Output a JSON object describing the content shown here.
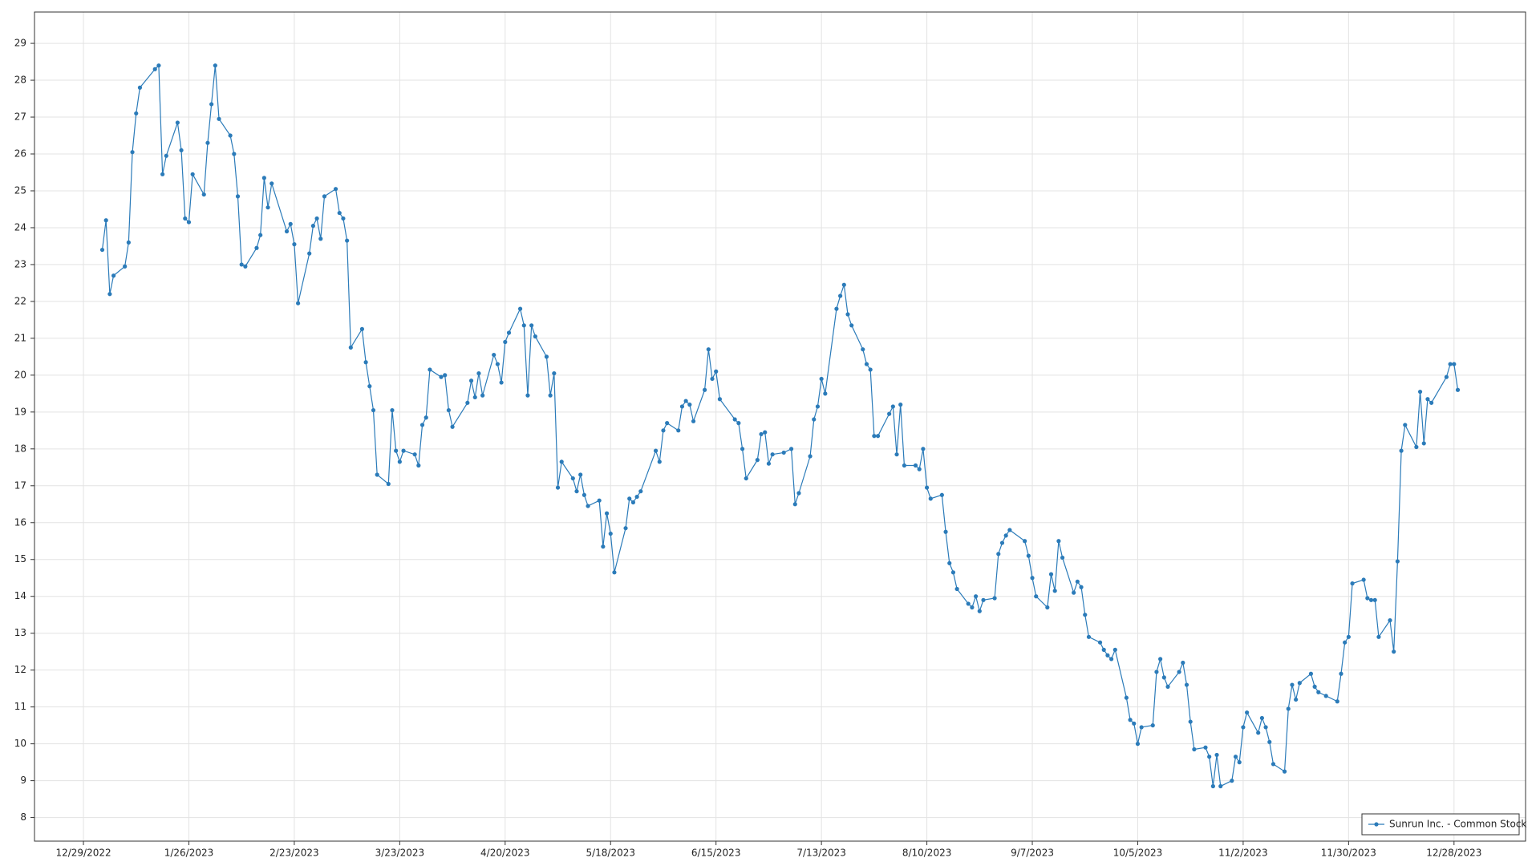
{
  "chart_data": {
    "type": "line",
    "xlim": [
      "12/16/2022",
      "1/16/2024"
    ],
    "xticks": [
      "12/29/2022",
      "1/26/2023",
      "2/23/2023",
      "3/23/2023",
      "4/20/2023",
      "5/18/2023",
      "6/15/2023",
      "7/13/2023",
      "8/10/2023",
      "9/7/2023",
      "10/5/2023",
      "11/2/2023",
      "11/30/2023",
      "12/28/2023"
    ],
    "ylim": [
      7.36,
      29.85
    ],
    "yticks": [
      8,
      9,
      10,
      11,
      12,
      13,
      14,
      15,
      16,
      17,
      18,
      19,
      20,
      21,
      22,
      23,
      24,
      25,
      26,
      27,
      28,
      29
    ],
    "grid": true,
    "legend": "bottom-right",
    "x": [
      "1/3/2023",
      "1/4/2023",
      "1/5/2023",
      "1/6/2023",
      "1/9/2023",
      "1/10/2023",
      "1/11/2023",
      "1/12/2023",
      "1/13/2023",
      "1/17/2023",
      "1/18/2023",
      "1/19/2023",
      "1/20/2023",
      "1/23/2023",
      "1/24/2023",
      "1/25/2023",
      "1/26/2023",
      "1/27/2023",
      "1/30/2023",
      "1/31/2023",
      "2/1/2023",
      "2/2/2023",
      "2/3/2023",
      "2/6/2023",
      "2/7/2023",
      "2/8/2023",
      "2/9/2023",
      "2/10/2023",
      "2/13/2023",
      "2/14/2023",
      "2/15/2023",
      "2/16/2023",
      "2/17/2023",
      "2/21/2023",
      "2/22/2023",
      "2/23/2023",
      "2/24/2023",
      "2/27/2023",
      "2/28/2023",
      "3/1/2023",
      "3/2/2023",
      "3/3/2023",
      "3/6/2023",
      "3/7/2023",
      "3/8/2023",
      "3/9/2023",
      "3/10/2023",
      "3/13/2023",
      "3/14/2023",
      "3/15/2023",
      "3/16/2023",
      "3/17/2023",
      "3/20/2023",
      "3/21/2023",
      "3/22/2023",
      "3/23/2023",
      "3/24/2023",
      "3/27/2023",
      "3/28/2023",
      "3/29/2023",
      "3/30/2023",
      "3/31/2023",
      "4/3/2023",
      "4/4/2023",
      "4/5/2023",
      "4/6/2023",
      "4/10/2023",
      "4/11/2023",
      "4/12/2023",
      "4/13/2023",
      "4/14/2023",
      "4/17/2023",
      "4/18/2023",
      "4/19/2023",
      "4/20/2023",
      "4/21/2023",
      "4/24/2023",
      "4/25/2023",
      "4/26/2023",
      "4/27/2023",
      "4/28/2023",
      "5/1/2023",
      "5/2/2023",
      "5/3/2023",
      "5/4/2023",
      "5/5/2023",
      "5/8/2023",
      "5/9/2023",
      "5/10/2023",
      "5/11/2023",
      "5/12/2023",
      "5/15/2023",
      "5/16/2023",
      "5/17/2023",
      "5/18/2023",
      "5/19/2023",
      "5/22/2023",
      "5/23/2023",
      "5/24/2023",
      "5/25/2023",
      "5/26/2023",
      "5/30/2023",
      "5/31/2023",
      "6/1/2023",
      "6/2/2023",
      "6/5/2023",
      "6/6/2023",
      "6/7/2023",
      "6/8/2023",
      "6/9/2023",
      "6/12/2023",
      "6/13/2023",
      "6/14/2023",
      "6/15/2023",
      "6/16/2023",
      "6/20/2023",
      "6/21/2023",
      "6/22/2023",
      "6/23/2023",
      "6/26/2023",
      "6/27/2023",
      "6/28/2023",
      "6/29/2023",
      "6/30/2023",
      "7/3/2023",
      "7/5/2023",
      "7/6/2023",
      "7/7/2023",
      "7/10/2023",
      "7/11/2023",
      "7/12/2023",
      "7/13/2023",
      "7/14/2023",
      "7/17/2023",
      "7/18/2023",
      "7/19/2023",
      "7/20/2023",
      "7/21/2023",
      "7/24/2023",
      "7/25/2023",
      "7/26/2023",
      "7/27/2023",
      "7/28/2023",
      "7/31/2023",
      "8/1/2023",
      "8/2/2023",
      "8/3/2023",
      "8/4/2023",
      "8/7/2023",
      "8/8/2023",
      "8/9/2023",
      "8/10/2023",
      "8/11/2023",
      "8/14/2023",
      "8/15/2023",
      "8/16/2023",
      "8/17/2023",
      "8/18/2023",
      "8/21/2023",
      "8/22/2023",
      "8/23/2023",
      "8/24/2023",
      "8/25/2023",
      "8/28/2023",
      "8/29/2023",
      "8/30/2023",
      "8/31/2023",
      "9/1/2023",
      "9/5/2023",
      "9/6/2023",
      "9/7/2023",
      "9/8/2023",
      "9/11/2023",
      "9/12/2023",
      "9/13/2023",
      "9/14/2023",
      "9/15/2023",
      "9/18/2023",
      "9/19/2023",
      "9/20/2023",
      "9/21/2023",
      "9/22/2023",
      "9/25/2023",
      "9/26/2023",
      "9/27/2023",
      "9/28/2023",
      "9/29/2023",
      "10/2/2023",
      "10/3/2023",
      "10/4/2023",
      "10/5/2023",
      "10/6/2023",
      "10/9/2023",
      "10/10/2023",
      "10/11/2023",
      "10/12/2023",
      "10/13/2023",
      "10/16/2023",
      "10/17/2023",
      "10/18/2023",
      "10/19/2023",
      "10/20/2023",
      "10/23/2023",
      "10/24/2023",
      "10/25/2023",
      "10/26/2023",
      "10/27/2023",
      "10/30/2023",
      "10/31/2023",
      "11/1/2023",
      "11/2/2023",
      "11/3/2023",
      "11/6/2023",
      "11/7/2023",
      "11/8/2023",
      "11/9/2023",
      "11/10/2023",
      "11/13/2023",
      "11/14/2023",
      "11/15/2023",
      "11/16/2023",
      "11/17/2023",
      "11/20/2023",
      "11/21/2023",
      "11/22/2023",
      "11/24/2023",
      "11/27/2023",
      "11/28/2023",
      "11/29/2023",
      "11/30/2023",
      "12/1/2023",
      "12/4/2023",
      "12/5/2023",
      "12/6/2023",
      "12/7/2023",
      "12/8/2023",
      "12/11/2023",
      "12/12/2023",
      "12/13/2023",
      "12/14/2023",
      "12/15/2023",
      "12/18/2023",
      "12/19/2023",
      "12/20/2023",
      "12/21/2023",
      "12/22/2023",
      "12/26/2023",
      "12/27/2023",
      "12/28/2023",
      "12/29/2023"
    ],
    "series": [
      {
        "name": "Sunrun Inc. - Common Stock",
        "color": "#2b7bb9",
        "values": [
          23.4,
          24.2,
          22.2,
          22.7,
          22.95,
          23.6,
          26.05,
          27.1,
          27.8,
          28.3,
          28.4,
          25.45,
          25.95,
          26.85,
          26.1,
          24.25,
          24.15,
          25.45,
          24.9,
          26.3,
          27.35,
          28.4,
          26.95,
          26.5,
          26.0,
          24.85,
          23.0,
          22.95,
          23.45,
          23.8,
          25.35,
          24.55,
          25.2,
          23.9,
          24.1,
          23.55,
          21.95,
          23.3,
          24.05,
          24.25,
          23.7,
          24.85,
          25.05,
          24.4,
          24.25,
          23.65,
          20.75,
          21.25,
          20.35,
          19.7,
          19.05,
          17.3,
          17.05,
          19.05,
          17.95,
          17.65,
          17.95,
          17.85,
          17.55,
          18.65,
          18.85,
          20.15,
          19.95,
          20.0,
          19.05,
          18.6,
          19.25,
          19.85,
          19.4,
          20.05,
          19.45,
          20.55,
          20.3,
          19.8,
          20.9,
          21.15,
          21.8,
          21.35,
          19.45,
          21.35,
          21.05,
          20.5,
          19.45,
          20.05,
          16.95,
          17.65,
          17.2,
          16.85,
          17.3,
          16.75,
          16.45,
          16.6,
          15.35,
          16.25,
          15.7,
          14.65,
          15.85,
          16.65,
          16.55,
          16.7,
          16.85,
          17.95,
          17.65,
          18.5,
          18.7,
          18.5,
          19.15,
          19.3,
          19.2,
          18.75,
          19.6,
          20.7,
          19.9,
          20.1,
          19.35,
          18.8,
          18.7,
          18.0,
          17.2,
          17.7,
          18.4,
          18.45,
          17.6,
          17.85,
          17.9,
          18.0,
          16.5,
          16.8,
          17.8,
          18.8,
          19.15,
          19.9,
          19.5,
          21.8,
          22.15,
          22.45,
          21.65,
          21.35,
          20.7,
          20.3,
          20.15,
          18.35,
          18.35,
          18.95,
          19.15,
          17.85,
          19.2,
          17.55,
          17.55,
          17.45,
          18.0,
          16.95,
          16.65,
          16.75,
          15.75,
          14.9,
          14.65,
          14.2,
          13.8,
          13.7,
          14.0,
          13.6,
          13.9,
          13.95,
          15.15,
          15.45,
          15.65,
          15.8,
          15.5,
          15.1,
          14.5,
          14.0,
          13.7,
          14.6,
          14.15,
          15.5,
          15.05,
          14.1,
          14.4,
          14.25,
          13.5,
          12.9,
          12.75,
          12.55,
          12.4,
          12.3,
          12.55,
          11.25,
          10.65,
          10.55,
          10.0,
          10.45,
          10.5,
          11.95,
          12.3,
          11.8,
          11.55,
          11.95,
          12.2,
          11.6,
          10.6,
          9.85,
          9.9,
          9.65,
          8.85,
          9.7,
          8.85,
          9.0,
          9.65,
          9.5,
          10.45,
          10.85,
          10.3,
          10.7,
          10.45,
          10.05,
          9.45,
          9.25,
          10.95,
          11.6,
          11.2,
          11.65,
          11.9,
          11.55,
          11.4,
          11.3,
          11.15,
          11.9,
          12.75,
          12.9,
          14.35,
          14.45,
          13.95,
          13.9,
          13.9,
          12.9,
          13.35,
          12.5,
          14.95,
          17.95,
          18.65,
          18.05,
          19.55,
          18.15,
          19.35,
          19.25,
          19.95,
          20.3,
          20.3,
          19.6
        ]
      }
    ]
  }
}
